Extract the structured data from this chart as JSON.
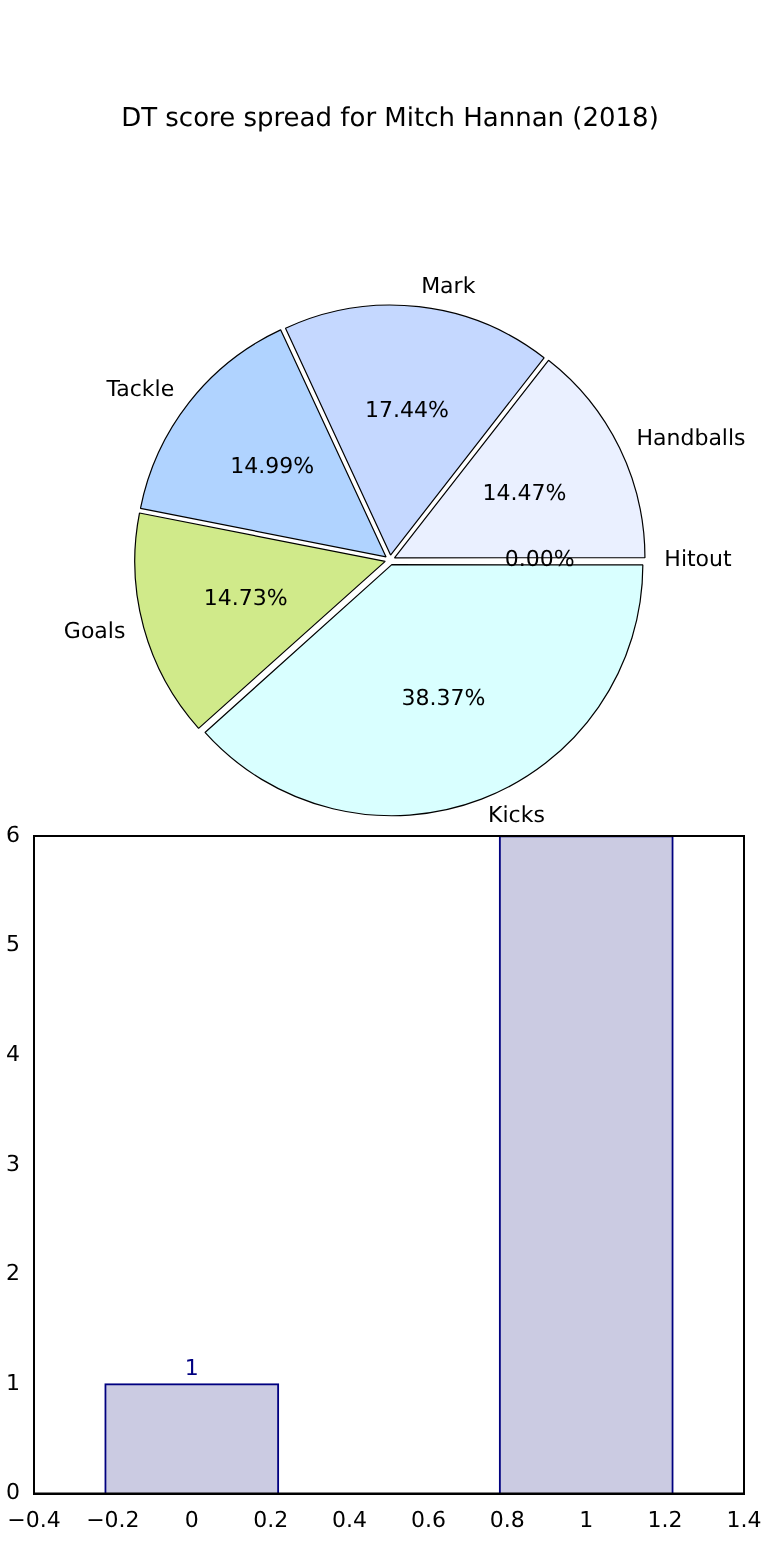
{
  "chart_data": [
    {
      "type": "pie",
      "title": "DT score spread for Mitch Hannan (2018)",
      "categories": [
        "Hitout",
        "Kicks",
        "Goals",
        "Tackle",
        "Mark",
        "Handballs"
      ],
      "values": [
        0.0,
        38.37,
        14.73,
        14.99,
        17.44,
        14.47
      ],
      "value_labels": [
        "0.00%",
        "38.37%",
        "14.73%",
        "14.99%",
        "17.44%",
        "14.47%"
      ],
      "colors": [
        "#f5f5f5",
        "#d9ffff",
        "#d0ea8a",
        "#b0d3ff",
        "#c5d8ff",
        "#eaf0ff"
      ],
      "legend": false
    },
    {
      "type": "bar",
      "x": [
        0,
        1
      ],
      "values": [
        1,
        6
      ],
      "value_labels": [
        "1",
        null
      ],
      "color": "#cbcbe2",
      "xlim": [
        -0.4,
        1.4
      ],
      "xticks": [
        {
          "value": -0.4,
          "label": "−0.4"
        },
        {
          "value": -0.2,
          "label": "−0.2"
        },
        0.0,
        0.2,
        0.4,
        0.6,
        0.8,
        1.0,
        1.2,
        1.4
      ],
      "ylim": [
        0,
        6
      ],
      "yticks": [
        0,
        1,
        2,
        3,
        4,
        5,
        6
      ],
      "grid": false,
      "legend": false
    }
  ]
}
